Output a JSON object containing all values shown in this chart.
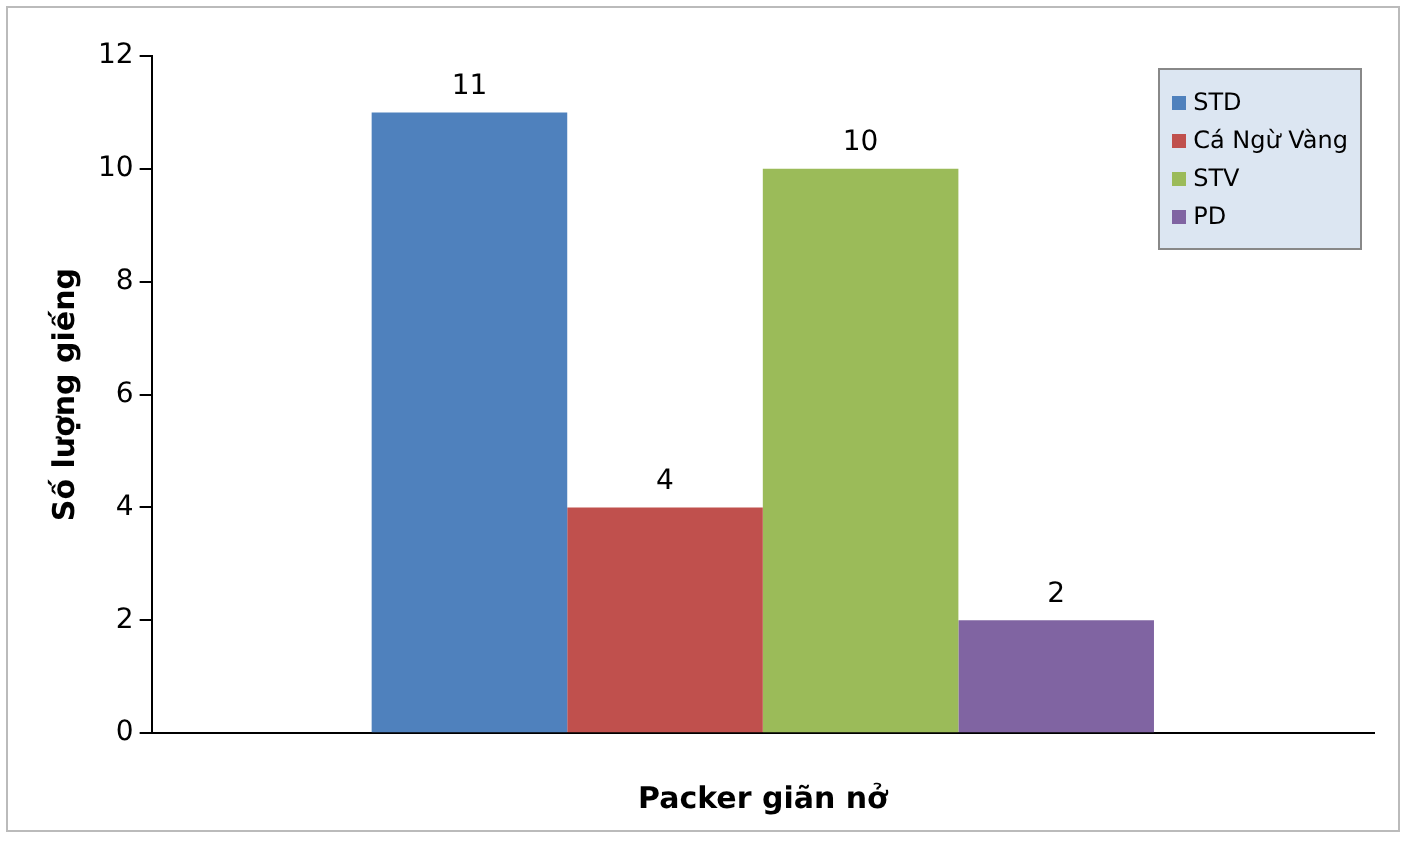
{
  "chart_data": {
    "type": "bar",
    "xlabel": "Packer giãn nở",
    "ylabel": "Số lượng giếng",
    "categories": [
      null
    ],
    "series": [
      {
        "name": "STD",
        "color": "#4f81bd",
        "values": [
          11
        ]
      },
      {
        "name": "Cá Ngừ Vàng",
        "color": "#c0504d",
        "values": [
          4
        ]
      },
      {
        "name": "STV",
        "color": "#9bbb59",
        "values": [
          10
        ]
      },
      {
        "name": "PD",
        "color": "#8064a2",
        "values": [
          2
        ]
      }
    ],
    "ylim": [
      0,
      12
    ],
    "yticks": [
      0,
      2,
      4,
      6,
      8,
      10,
      12
    ],
    "grid": false,
    "legend": "top right",
    "data_labels": true
  }
}
